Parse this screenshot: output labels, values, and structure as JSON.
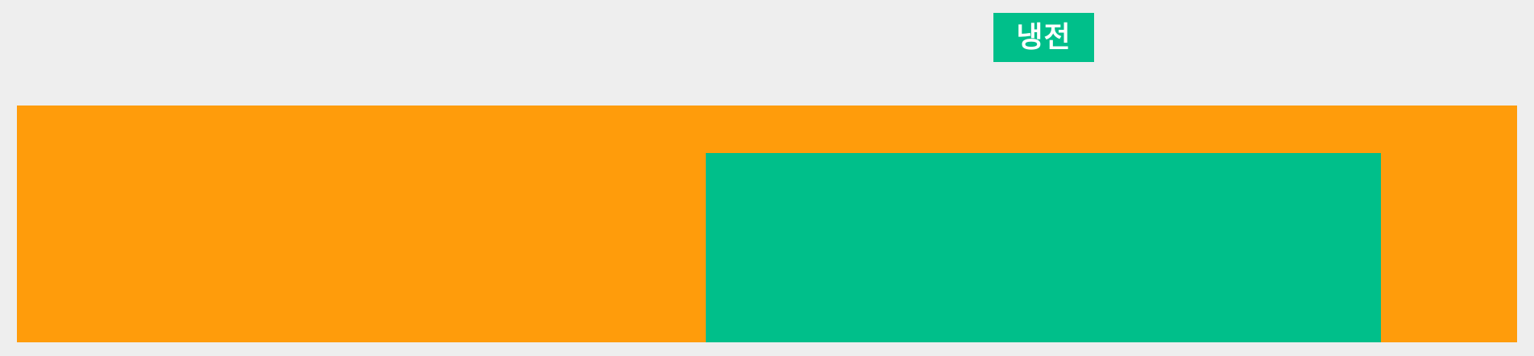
{
  "label": {
    "text": "냉전"
  },
  "colors": {
    "background": "#eeeeee",
    "outer_bar": "#ff9c0b",
    "inner_bar": "#00bf8a",
    "label_bg": "#00bf8a",
    "label_text": "#ffffff"
  }
}
